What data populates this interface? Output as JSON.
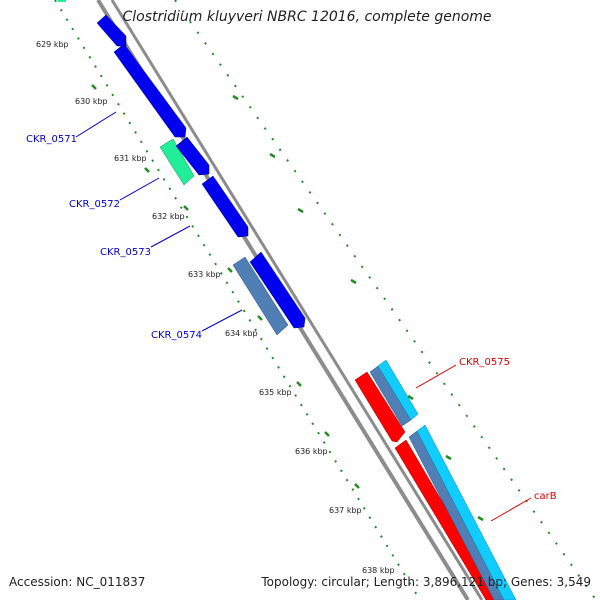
{
  "title": "Clostridium kluyveri NBRC 12016, complete genome",
  "accession": "Accession: NC_011837",
  "topology": "Topology: circular; Length: 3,896,121 bp; Genes: 3,549",
  "kbp_ticks": [
    "629 kbp",
    "630 kbp",
    "631 kbp",
    "632 kbp",
    "633 kbp",
    "634 kbp",
    "635 kbp",
    "636 kbp",
    "637 kbp",
    "638 kbp"
  ],
  "genes": [
    {
      "name": "CKR_0571",
      "color": "#0000cc"
    },
    {
      "name": "CKR_0572",
      "color": "#0000cc"
    },
    {
      "name": "CKR_0573",
      "color": "#0000cc"
    },
    {
      "name": "CKR_0574",
      "color": "#0000cc"
    },
    {
      "name": "CKR_0575",
      "color": "#dd0000"
    },
    {
      "name": "carB",
      "color": "#dd0000"
    }
  ],
  "colors": {
    "forward_cds": "#0000ee",
    "orf_teal": "#22ee99",
    "steel_blue": "#4f7fb5",
    "reverse_cds": "#ff0000",
    "cyan": "#11ccff",
    "backbone": "#8c8c8c",
    "tick_green": "#228b22"
  }
}
